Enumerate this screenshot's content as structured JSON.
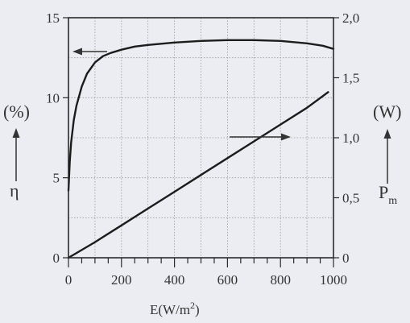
{
  "chart_data": {
    "type": "line",
    "xlabel": "E(W/m",
    "xlabel_sup": "2",
    "xlabel_close": ")",
    "x_ticks": [
      "0",
      "200",
      "400",
      "600",
      "800",
      "1000"
    ],
    "xlim": [
      0,
      1000
    ],
    "left_axis": {
      "unit": "(%)",
      "symbol": "η",
      "ticks": [
        "0",
        "5",
        "10",
        "15"
      ],
      "ylim": [
        0,
        15
      ]
    },
    "right_axis": {
      "unit": "(W)",
      "symbol": "P",
      "symbol_sub": "m",
      "ticks": [
        "0",
        "0,5",
        "1,0",
        "1,5",
        "2,0"
      ],
      "ylim": [
        0,
        2.0
      ]
    },
    "grid": "dotted",
    "series": [
      {
        "axis": "left",
        "x": [
          0,
          5,
          10,
          20,
          30,
          50,
          70,
          100,
          130,
          160,
          200,
          250,
          300,
          400,
          500,
          600,
          700,
          800,
          900,
          960,
          1000
        ],
        "y": [
          4.2,
          6.0,
          7.2,
          8.6,
          9.5,
          10.7,
          11.5,
          12.2,
          12.6,
          12.8,
          13.0,
          13.2,
          13.3,
          13.45,
          13.55,
          13.6,
          13.6,
          13.55,
          13.4,
          13.25,
          13.05
        ]
      },
      {
        "axis": "right",
        "x": [
          0,
          100,
          200,
          300,
          400,
          500,
          600,
          700,
          800,
          900,
          980
        ],
        "y": [
          0.0,
          0.13,
          0.27,
          0.41,
          0.55,
          0.69,
          0.83,
          0.97,
          1.11,
          1.25,
          1.38
        ]
      }
    ],
    "legend": "arrows"
  }
}
